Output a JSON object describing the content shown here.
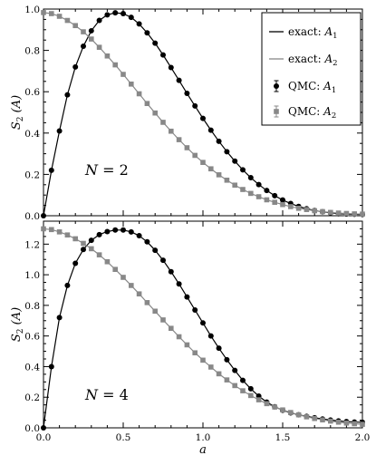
{
  "colors": {
    "series_A1": "#000000",
    "series_A2": "#888888",
    "frame": "#000000",
    "background": "#ffffff"
  },
  "legend": {
    "placement": "top-right of upper panel",
    "entries": [
      {
        "kind": "line",
        "series": "A1",
        "prefix": "exact: ",
        "sym": "A",
        "sub": "1"
      },
      {
        "kind": "line",
        "series": "A2",
        "prefix": "exact: ",
        "sym": "A",
        "sub": "2"
      },
      {
        "kind": "marker",
        "series": "A1",
        "prefix": "QMC: ",
        "sym": "A",
        "sub": "1"
      },
      {
        "kind": "marker",
        "series": "A2",
        "prefix": "QMC: ",
        "sym": "A",
        "sub": "2"
      }
    ]
  },
  "chart_data": [
    {
      "type": "line",
      "panel": "top",
      "annotation": {
        "lhs": "N",
        "eq": " = ",
        "rhs": "2"
      },
      "ylabel": {
        "main": "S",
        "sub": "2",
        "rest": " (A)"
      },
      "xlabel": "",
      "xlim": [
        0.0,
        2.0
      ],
      "ylim": [
        0.0,
        1.0
      ],
      "xticks": [
        0.0,
        0.5,
        1.0,
        1.5,
        2.0
      ],
      "xtick_labels": [],
      "yticks": [
        0.0,
        0.2,
        0.4,
        0.6,
        0.8,
        1.0
      ],
      "ytick_labels": [
        "0.0",
        "0.2",
        "0.4",
        "0.6",
        "0.8",
        "1.0"
      ],
      "grid": false,
      "x": [
        0.0,
        0.05,
        0.1,
        0.15,
        0.2,
        0.25,
        0.3,
        0.35,
        0.4,
        0.45,
        0.5,
        0.55,
        0.6,
        0.65,
        0.7,
        0.75,
        0.8,
        0.85,
        0.9,
        0.95,
        1.0,
        1.05,
        1.1,
        1.15,
        1.2,
        1.25,
        1.3,
        1.35,
        1.4,
        1.45,
        1.5,
        1.55,
        1.6,
        1.65,
        1.7,
        1.75,
        1.8,
        1.85,
        1.9,
        1.95,
        2.0
      ],
      "series": [
        {
          "id": "A1",
          "name_prefix": "exact / QMC",
          "values": [
            0.0,
            0.22,
            0.41,
            0.585,
            0.72,
            0.82,
            0.895,
            0.945,
            0.972,
            0.982,
            0.978,
            0.96,
            0.928,
            0.885,
            0.835,
            0.778,
            0.717,
            0.655,
            0.592,
            0.531,
            0.471,
            0.414,
            0.36,
            0.31,
            0.264,
            0.222,
            0.184,
            0.151,
            0.122,
            0.097,
            0.076,
            0.059,
            0.045,
            0.034,
            0.025,
            0.019,
            0.014,
            0.01,
            0.008,
            0.007,
            0.006
          ]
        },
        {
          "id": "A2",
          "name_prefix": "exact / QMC",
          "values": [
            0.983,
            0.978,
            0.965,
            0.945,
            0.92,
            0.89,
            0.855,
            0.815,
            0.773,
            0.73,
            0.684,
            0.637,
            0.59,
            0.543,
            0.497,
            0.452,
            0.409,
            0.368,
            0.329,
            0.292,
            0.258,
            0.227,
            0.198,
            0.172,
            0.148,
            0.127,
            0.108,
            0.092,
            0.077,
            0.065,
            0.054,
            0.044,
            0.036,
            0.03,
            0.024,
            0.02,
            0.016,
            0.013,
            0.011,
            0.009,
            0.008
          ]
        }
      ]
    },
    {
      "type": "line",
      "panel": "bottom",
      "annotation": {
        "lhs": "N",
        "eq": " = ",
        "rhs": "4"
      },
      "ylabel": {
        "main": "S",
        "sub": "2",
        "rest": " (A)"
      },
      "xlabel": "a",
      "xlim": [
        0.0,
        2.0
      ],
      "ylim": [
        0.0,
        1.35
      ],
      "xticks": [
        0.0,
        0.5,
        1.0,
        1.5,
        2.0
      ],
      "xtick_labels": [
        "0.0",
        "0.5",
        "1.0",
        "1.5",
        "2.0"
      ],
      "yticks": [
        0.0,
        0.2,
        0.4,
        0.6,
        0.8,
        1.0,
        1.2
      ],
      "ytick_labels": [
        "0.0",
        "0.2",
        "0.4",
        "0.6",
        "0.8",
        "1.0",
        "1.2"
      ],
      "grid": false,
      "x": [
        0.0,
        0.05,
        0.1,
        0.15,
        0.2,
        0.25,
        0.3,
        0.35,
        0.4,
        0.45,
        0.5,
        0.55,
        0.6,
        0.65,
        0.7,
        0.75,
        0.8,
        0.85,
        0.9,
        0.95,
        1.0,
        1.05,
        1.1,
        1.15,
        1.2,
        1.25,
        1.3,
        1.35,
        1.4,
        1.45,
        1.5,
        1.55,
        1.6,
        1.65,
        1.7,
        1.75,
        1.8,
        1.85,
        1.9,
        1.95,
        2.0
      ],
      "series": [
        {
          "id": "A1",
          "name_prefix": "exact / QMC",
          "values": [
            0.0,
            0.4,
            0.72,
            0.93,
            1.075,
            1.165,
            1.225,
            1.262,
            1.282,
            1.292,
            1.292,
            1.28,
            1.255,
            1.215,
            1.16,
            1.095,
            1.02,
            0.94,
            0.855,
            0.77,
            0.685,
            0.6,
            0.52,
            0.445,
            0.375,
            0.31,
            0.255,
            0.207,
            0.168,
            0.138,
            0.115,
            0.098,
            0.085,
            0.075,
            0.066,
            0.058,
            0.051,
            0.045,
            0.041,
            0.038,
            0.036
          ]
        },
        {
          "id": "A2",
          "name_prefix": "exact / QMC",
          "values": [
            1.3,
            1.295,
            1.28,
            1.26,
            1.235,
            1.205,
            1.17,
            1.13,
            1.085,
            1.035,
            0.983,
            0.93,
            0.875,
            0.818,
            0.762,
            0.705,
            0.65,
            0.595,
            0.542,
            0.49,
            0.442,
            0.397,
            0.353,
            0.313,
            0.276,
            0.242,
            0.211,
            0.183,
            0.158,
            0.136,
            0.117,
            0.1,
            0.085,
            0.072,
            0.061,
            0.052,
            0.044,
            0.037,
            0.031,
            0.027,
            0.023
          ]
        }
      ]
    }
  ]
}
